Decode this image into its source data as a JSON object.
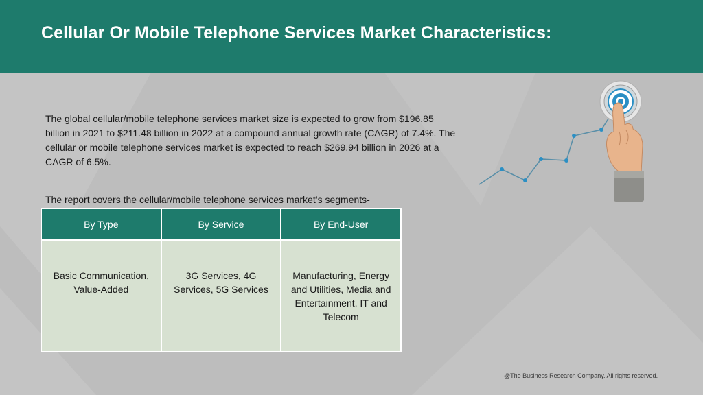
{
  "header": {
    "title": "Cellular Or Mobile Telephone Services Market Characteristics:",
    "background_color": "#1e7b6c"
  },
  "description": "The global cellular/mobile telephone services market size is expected to grow from $196.85 billion in 2021 to $211.48 billion in 2022 at a compound annual growth rate (CAGR) of 7.4%. The cellular or mobile telephone services market is expected to reach $269.94 billion in 2026 at a CAGR of 6.5%.",
  "segments_intro": "The report covers the cellular/mobile telephone services market’s segments-",
  "segments_table": {
    "headers": [
      "By Type",
      "By Service",
      "By End-User"
    ],
    "cells": [
      "Basic Communication, Value-Added",
      "3G Services, 4G Services, 5G Services",
      "Manufacturing, Energy and Utilities, Media and Entertainment, IT and Telecom"
    ],
    "header_color": "#1e7b6c",
    "cell_color": "#d7e1d1"
  },
  "graphic": {
    "icon": "growth-chart-with-target-icon",
    "accent_color": "#2b8fc4"
  },
  "footer": {
    "copyright": "@The Business Research Company. All rights reserved."
  }
}
